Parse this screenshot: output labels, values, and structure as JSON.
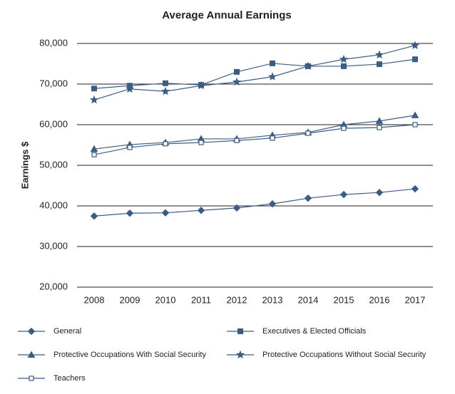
{
  "chart_data": {
    "type": "line",
    "title": "Average Annual Earnings",
    "y_label": "Earnings $",
    "categories": [
      "2008",
      "2009",
      "2010",
      "2011",
      "2012",
      "2013",
      "2014",
      "2015",
      "2016",
      "2017"
    ],
    "ylim": [
      20000,
      80000
    ],
    "yticks": [
      {
        "value": 20000,
        "label": "20,000"
      },
      {
        "value": 30000,
        "label": "30,000"
      },
      {
        "value": 40000,
        "label": "40,000"
      },
      {
        "value": 50000,
        "label": "50,000"
      },
      {
        "value": 60000,
        "label": "60,000"
      },
      {
        "value": 70000,
        "label": "70,000"
      },
      {
        "value": 80000,
        "label": "80,000"
      }
    ],
    "grid": true,
    "legend": "bottom",
    "series": [
      {
        "name": "General",
        "color": "#3b5d85",
        "marker": "diamond",
        "values": [
          37500,
          38200,
          38300,
          38900,
          39500,
          40500,
          41900,
          42800,
          43300,
          44200
        ]
      },
      {
        "name": "Executives & Elected Officials",
        "color": "#3b5d85",
        "marker": "square",
        "values": [
          68900,
          69600,
          70200,
          69800,
          73000,
          75100,
          74400,
          74400,
          74900,
          76100
        ]
      },
      {
        "name": "Protective Occupations With Social Security",
        "color": "#3b5d85",
        "marker": "triangle",
        "values": [
          54000,
          55100,
          55600,
          56500,
          56500,
          57400,
          58100,
          60000,
          60900,
          62300
        ]
      },
      {
        "name": "Protective Occupations Without Social Security",
        "color": "#3b5d85",
        "marker": "star",
        "values": [
          66100,
          68800,
          68200,
          69600,
          70500,
          71800,
          74400,
          76100,
          77200,
          79500
        ]
      },
      {
        "name": "Teachers",
        "color": "#3b5d85",
        "marker": "open-square",
        "values": [
          52600,
          54400,
          55300,
          55600,
          56100,
          56700,
          57900,
          59100,
          59300,
          60000
        ]
      }
    ]
  }
}
